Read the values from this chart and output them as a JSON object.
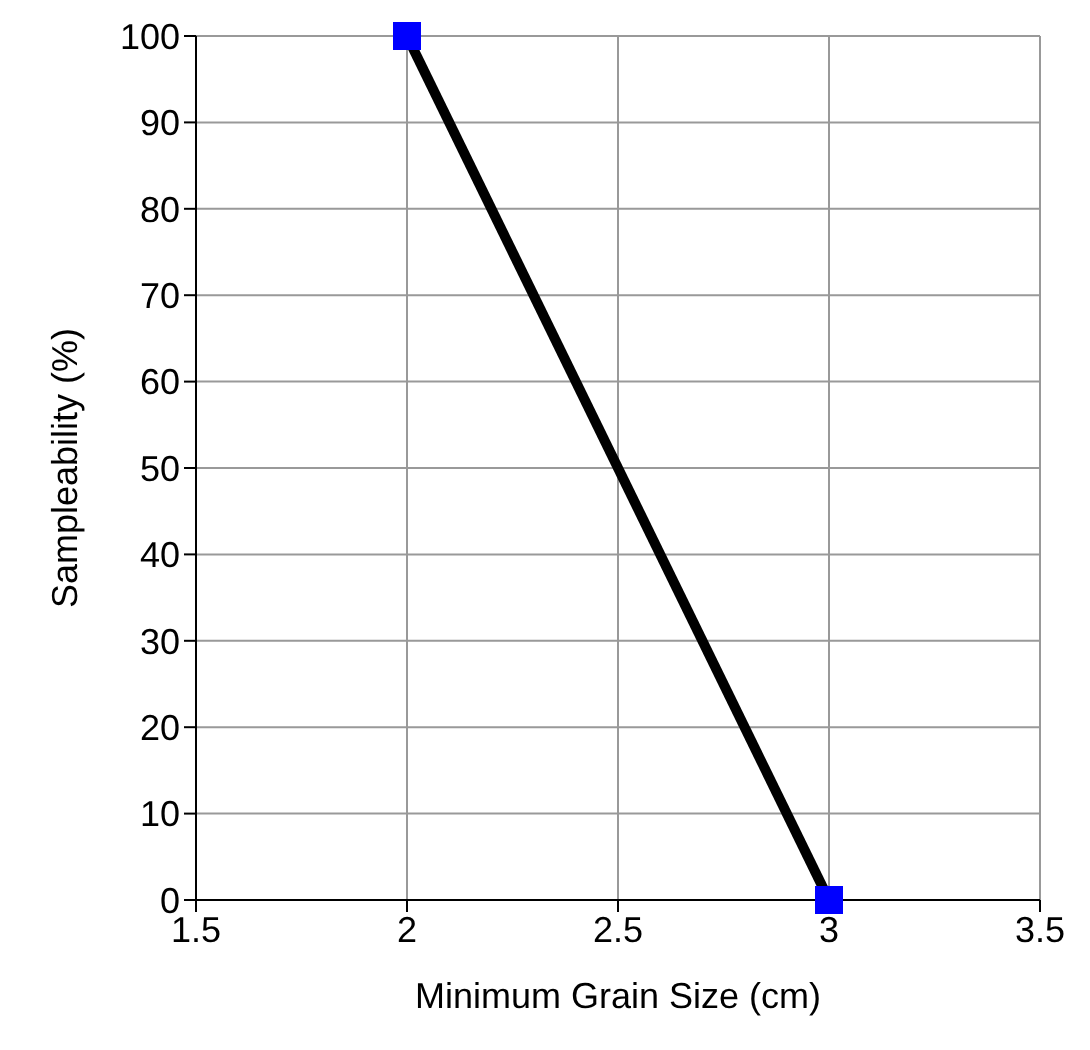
{
  "chart_data": {
    "type": "line",
    "xlabel": "Minimum Grain Size (cm)",
    "ylabel": "Sampleability (%)",
    "x": [
      2,
      3
    ],
    "series": [
      {
        "color": "#000000",
        "values": [
          100,
          0
        ],
        "marker": "none"
      },
      {
        "type": "scatter",
        "color": "#0000ff",
        "values": [
          100,
          0
        ],
        "marker": "square"
      }
    ],
    "xlim": [
      1.5,
      3.5
    ],
    "xticks": [
      1.5,
      2,
      2.5,
      3,
      3.5
    ],
    "ylim": [
      0,
      100
    ],
    "yticks": [
      0,
      10,
      20,
      30,
      40,
      50,
      60,
      70,
      80,
      90,
      100
    ],
    "grid": true
  }
}
